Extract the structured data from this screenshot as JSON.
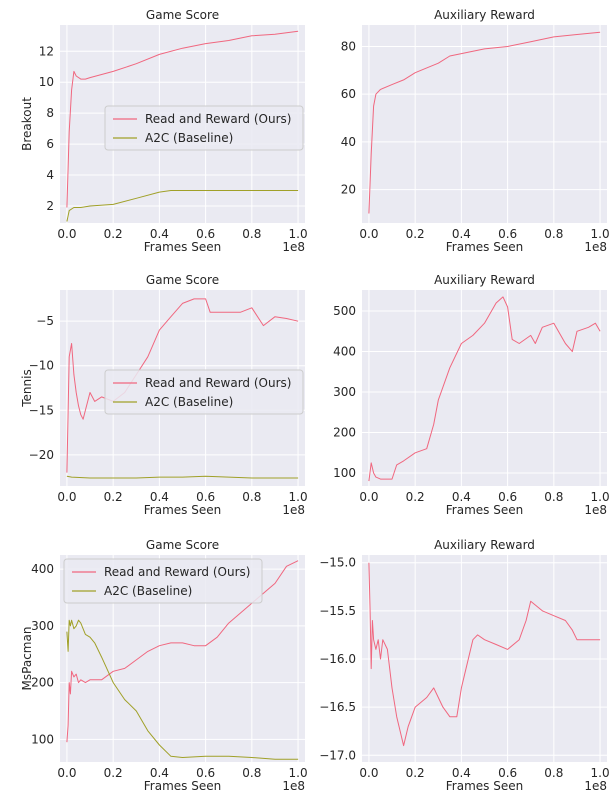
{
  "colors": {
    "ours": "#f0677f",
    "baseline": "#a0a028",
    "panel_bg": "#eaeaf2",
    "grid": "#ffffff"
  },
  "chart_data": [
    {
      "type": "line",
      "row_label": "Breakout",
      "title": "Game Score",
      "xlabel": "Frames Seen",
      "x_offset_label": "1e8",
      "xlim": [
        -0.03,
        1.03
      ],
      "ylim": [
        0.9,
        13.7
      ],
      "xticks": [
        0.0,
        0.2,
        0.4,
        0.6,
        0.8,
        1.0
      ],
      "xtick_labels": [
        "0.0",
        "0.2",
        "0.4",
        "0.6",
        "0.8",
        "1.0"
      ],
      "yticks": [
        2,
        4,
        6,
        8,
        10,
        12
      ],
      "ytick_labels": [
        "2",
        "4",
        "6",
        "8",
        "10",
        "12"
      ],
      "legend": {
        "position": "center-right",
        "entries": [
          "Read and Reward (Ours)",
          "A2C (Baseline)"
        ]
      },
      "series": [
        {
          "name": "Read and Reward (Ours)",
          "color_key": "ours",
          "x": [
            0.0,
            0.01,
            0.02,
            0.03,
            0.04,
            0.06,
            0.08,
            0.1,
            0.15,
            0.2,
            0.3,
            0.4,
            0.5,
            0.6,
            0.7,
            0.8,
            0.9,
            1.0
          ],
          "y": [
            1.9,
            6.8,
            9.5,
            10.7,
            10.4,
            10.2,
            10.2,
            10.3,
            10.5,
            10.7,
            11.2,
            11.8,
            12.2,
            12.5,
            12.7,
            13.0,
            13.1,
            13.3
          ]
        },
        {
          "name": "A2C (Baseline)",
          "color_key": "baseline",
          "x": [
            0.0,
            0.01,
            0.03,
            0.06,
            0.1,
            0.2,
            0.3,
            0.4,
            0.45,
            0.5,
            0.6,
            0.8,
            1.0
          ],
          "y": [
            1.0,
            1.7,
            1.9,
            1.9,
            2.0,
            2.1,
            2.5,
            2.9,
            3.0,
            3.0,
            3.0,
            3.0,
            3.0
          ]
        }
      ]
    },
    {
      "type": "line",
      "title": "Auxiliary Reward",
      "xlabel": "Frames Seen",
      "x_offset_label": "1e8",
      "xlim": [
        -0.03,
        1.03
      ],
      "ylim": [
        6,
        89
      ],
      "xticks": [
        0.0,
        0.2,
        0.4,
        0.6,
        0.8,
        1.0
      ],
      "xtick_labels": [
        "0.0",
        "0.2",
        "0.4",
        "0.6",
        "0.8",
        "1.0"
      ],
      "yticks": [
        20,
        40,
        60,
        80
      ],
      "ytick_labels": [
        "20",
        "40",
        "60",
        "80"
      ],
      "series": [
        {
          "color_key": "ours",
          "x": [
            0.0,
            0.01,
            0.02,
            0.03,
            0.05,
            0.1,
            0.15,
            0.2,
            0.25,
            0.3,
            0.35,
            0.4,
            0.45,
            0.5,
            0.6,
            0.7,
            0.8,
            0.9,
            1.0
          ],
          "y": [
            10,
            35,
            55,
            60,
            62,
            64,
            66,
            69,
            71,
            73,
            76,
            77,
            78,
            79,
            80,
            82,
            84,
            85,
            86
          ]
        }
      ]
    },
    {
      "type": "line",
      "row_label": "Tennis",
      "title": "Game Score",
      "xlabel": "Frames Seen",
      "x_offset_label": "1e8",
      "xlim": [
        -0.03,
        1.03
      ],
      "ylim": [
        -23.5,
        -1.5
      ],
      "xticks": [
        0.0,
        0.2,
        0.4,
        0.6,
        0.8,
        1.0
      ],
      "xtick_labels": [
        "0.0",
        "0.2",
        "0.4",
        "0.6",
        "0.8",
        "1.0"
      ],
      "yticks": [
        -5,
        -10,
        -15,
        -20
      ],
      "ytick_labels": [
        "−5",
        "−10",
        "−15",
        "−20"
      ],
      "legend": {
        "position": "center-right",
        "entries": [
          "Read and Reward (Ours)",
          "A2C (Baseline)"
        ]
      },
      "series": [
        {
          "name": "Read and Reward (Ours)",
          "color_key": "ours",
          "x": [
            0.0,
            0.01,
            0.02,
            0.03,
            0.04,
            0.05,
            0.06,
            0.07,
            0.08,
            0.09,
            0.1,
            0.12,
            0.15,
            0.2,
            0.25,
            0.3,
            0.35,
            0.4,
            0.45,
            0.5,
            0.55,
            0.6,
            0.62,
            0.7,
            0.75,
            0.8,
            0.85,
            0.9,
            0.95,
            1.0
          ],
          "y": [
            -22,
            -9,
            -7.5,
            -11,
            -13,
            -14.5,
            -15.5,
            -16,
            -15,
            -14,
            -13,
            -14,
            -13.5,
            -14,
            -13,
            -11,
            -9,
            -6,
            -4.5,
            -3,
            -2.5,
            -2.5,
            -4,
            -4,
            -4,
            -3.5,
            -5.5,
            -4.5,
            -4.7,
            -5
          ]
        },
        {
          "name": "A2C (Baseline)",
          "color_key": "baseline",
          "x": [
            0.0,
            0.02,
            0.1,
            0.2,
            0.3,
            0.4,
            0.5,
            0.6,
            0.7,
            0.8,
            0.9,
            1.0
          ],
          "y": [
            -22.4,
            -22.5,
            -22.6,
            -22.6,
            -22.6,
            -22.5,
            -22.5,
            -22.4,
            -22.5,
            -22.6,
            -22.6,
            -22.6
          ]
        }
      ]
    },
    {
      "type": "line",
      "title": "Auxiliary Reward",
      "xlabel": "Frames Seen",
      "x_offset_label": "1e8",
      "xlim": [
        -0.03,
        1.03
      ],
      "ylim": [
        68,
        552
      ],
      "xticks": [
        0.0,
        0.2,
        0.4,
        0.6,
        0.8,
        1.0
      ],
      "xtick_labels": [
        "0.0",
        "0.2",
        "0.4",
        "0.6",
        "0.8",
        "1.0"
      ],
      "yticks": [
        100,
        200,
        300,
        400,
        500
      ],
      "ytick_labels": [
        "100",
        "200",
        "300",
        "400",
        "500"
      ],
      "series": [
        {
          "color_key": "ours",
          "x": [
            0.0,
            0.01,
            0.02,
            0.03,
            0.05,
            0.08,
            0.1,
            0.12,
            0.15,
            0.2,
            0.25,
            0.28,
            0.3,
            0.35,
            0.4,
            0.45,
            0.5,
            0.55,
            0.58,
            0.6,
            0.62,
            0.65,
            0.7,
            0.72,
            0.75,
            0.8,
            0.85,
            0.88,
            0.9,
            0.95,
            0.98,
            1.0
          ],
          "y": [
            80,
            125,
            100,
            90,
            85,
            85,
            85,
            120,
            130,
            150,
            160,
            220,
            280,
            360,
            420,
            440,
            470,
            520,
            535,
            510,
            430,
            420,
            440,
            420,
            460,
            470,
            420,
            400,
            450,
            460,
            470,
            450
          ]
        }
      ]
    },
    {
      "type": "line",
      "row_label": "MsPacman",
      "title": "Game Score",
      "xlabel": "Frames Seen",
      "x_offset_label": "1e8",
      "xlim": [
        -0.03,
        1.03
      ],
      "ylim": [
        60,
        425
      ],
      "xticks": [
        0.0,
        0.2,
        0.4,
        0.6,
        0.8,
        1.0
      ],
      "xtick_labels": [
        "0.0",
        "0.2",
        "0.4",
        "0.6",
        "0.8",
        "1.0"
      ],
      "yticks": [
        100,
        200,
        300,
        400
      ],
      "ytick_labels": [
        "100",
        "200",
        "300",
        "400"
      ],
      "legend": {
        "position": "upper-left",
        "entries": [
          "Read and Reward (Ours)",
          "A2C (Baseline)"
        ]
      },
      "series": [
        {
          "name": "Read and Reward (Ours)",
          "color_key": "ours",
          "x": [
            0.0,
            0.005,
            0.01,
            0.015,
            0.02,
            0.03,
            0.04,
            0.05,
            0.06,
            0.08,
            0.1,
            0.15,
            0.2,
            0.25,
            0.3,
            0.35,
            0.4,
            0.45,
            0.5,
            0.55,
            0.6,
            0.65,
            0.7,
            0.8,
            0.9,
            0.95,
            1.0
          ],
          "y": [
            95,
            125,
            200,
            180,
            220,
            210,
            215,
            200,
            205,
            200,
            205,
            205,
            220,
            225,
            240,
            255,
            265,
            270,
            270,
            265,
            265,
            280,
            305,
            340,
            375,
            405,
            415
          ]
        },
        {
          "name": "A2C (Baseline)",
          "color_key": "baseline",
          "x": [
            0.0,
            0.005,
            0.01,
            0.015,
            0.02,
            0.03,
            0.04,
            0.05,
            0.06,
            0.08,
            0.1,
            0.12,
            0.15,
            0.2,
            0.25,
            0.3,
            0.35,
            0.4,
            0.45,
            0.5,
            0.6,
            0.7,
            0.8,
            0.9,
            1.0
          ],
          "y": [
            290,
            255,
            310,
            300,
            310,
            295,
            300,
            310,
            305,
            285,
            280,
            270,
            245,
            200,
            170,
            150,
            115,
            90,
            70,
            68,
            70,
            70,
            68,
            65,
            65
          ]
        }
      ]
    },
    {
      "type": "line",
      "title": "Auxiliary Reward",
      "xlabel": "Frames Seen",
      "x_offset_label": "1e8",
      "xlim": [
        -0.03,
        1.03
      ],
      "ylim": [
        -17.07,
        -14.92
      ],
      "xticks": [
        0.0,
        0.2,
        0.4,
        0.6,
        0.8,
        1.0
      ],
      "xtick_labels": [
        "0.0",
        "0.2",
        "0.4",
        "0.6",
        "0.8",
        "1.0"
      ],
      "yticks": [
        -15.0,
        -15.5,
        -16.0,
        -16.5,
        -17.0
      ],
      "ytick_labels": [
        "−15.0",
        "−15.5",
        "−16.0",
        "−16.5",
        "−17.0"
      ],
      "series": [
        {
          "color_key": "ours",
          "x": [
            0.0,
            0.005,
            0.01,
            0.015,
            0.02,
            0.03,
            0.04,
            0.05,
            0.06,
            0.08,
            0.1,
            0.12,
            0.15,
            0.17,
            0.2,
            0.25,
            0.28,
            0.3,
            0.32,
            0.35,
            0.38,
            0.4,
            0.42,
            0.45,
            0.47,
            0.5,
            0.55,
            0.6,
            0.65,
            0.68,
            0.7,
            0.75,
            0.8,
            0.85,
            0.88,
            0.9,
            0.95,
            1.0
          ],
          "y": [
            -15.0,
            -15.5,
            -16.1,
            -15.6,
            -15.8,
            -15.9,
            -15.8,
            -16.0,
            -15.8,
            -15.9,
            -16.3,
            -16.6,
            -16.9,
            -16.7,
            -16.5,
            -16.4,
            -16.3,
            -16.4,
            -16.5,
            -16.6,
            -16.6,
            -16.3,
            -16.1,
            -15.8,
            -15.75,
            -15.8,
            -15.85,
            -15.9,
            -15.8,
            -15.6,
            -15.4,
            -15.5,
            -15.55,
            -15.6,
            -15.7,
            -15.8,
            -15.8,
            -15.8
          ]
        }
      ]
    }
  ]
}
